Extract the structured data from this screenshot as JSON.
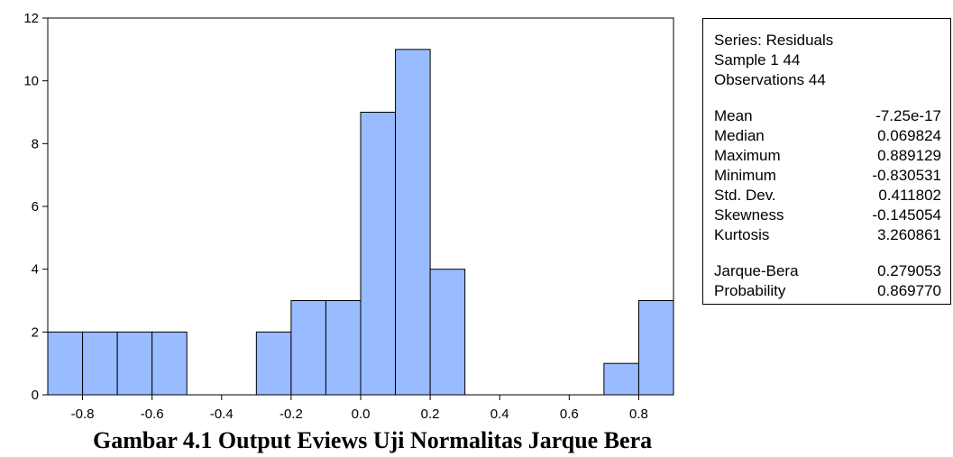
{
  "chart_data": {
    "type": "bar",
    "bins": [
      {
        "from": -0.9,
        "to": -0.8,
        "count": 2
      },
      {
        "from": -0.8,
        "to": -0.7,
        "count": 2
      },
      {
        "from": -0.7,
        "to": -0.6,
        "count": 2
      },
      {
        "from": -0.6,
        "to": -0.5,
        "count": 2
      },
      {
        "from": -0.5,
        "to": -0.4,
        "count": 0
      },
      {
        "from": -0.4,
        "to": -0.3,
        "count": 0
      },
      {
        "from": -0.3,
        "to": -0.2,
        "count": 2
      },
      {
        "from": -0.2,
        "to": -0.1,
        "count": 3
      },
      {
        "from": -0.1,
        "to": 0.0,
        "count": 3
      },
      {
        "from": 0.0,
        "to": 0.1,
        "count": 9
      },
      {
        "from": 0.1,
        "to": 0.2,
        "count": 11
      },
      {
        "from": 0.2,
        "to": 0.3,
        "count": 4
      },
      {
        "from": 0.3,
        "to": 0.4,
        "count": 0
      },
      {
        "from": 0.4,
        "to": 0.5,
        "count": 0
      },
      {
        "from": 0.5,
        "to": 0.6,
        "count": 0
      },
      {
        "from": 0.6,
        "to": 0.7,
        "count": 0
      },
      {
        "from": 0.7,
        "to": 0.8,
        "count": 1
      },
      {
        "from": 0.8,
        "to": 0.9,
        "count": 3
      }
    ],
    "xlim": [
      -0.9,
      0.9
    ],
    "ylim": [
      0,
      12
    ],
    "xticks": [
      -0.8,
      -0.6,
      -0.4,
      -0.2,
      0.0,
      0.2,
      0.4,
      0.6,
      0.8
    ],
    "xtick_labels": [
      "-0.8",
      "-0.6",
      "-0.4",
      "-0.2",
      "0.0",
      "0.2",
      "0.4",
      "0.6",
      "0.8"
    ],
    "yticks": [
      0,
      2,
      4,
      6,
      8,
      10,
      12
    ],
    "ytick_labels": [
      "0",
      "2",
      "4",
      "6",
      "8",
      "10",
      "12"
    ],
    "bar_color": "#99bbff",
    "grid": false
  },
  "stats_box": {
    "series": "Series: Residuals",
    "sample": "Sample 1 44",
    "observations": "Observations 44",
    "rows": [
      {
        "label": "Mean",
        "value": "-7.25e-17"
      },
      {
        "label": "Median",
        "value": "0.069824"
      },
      {
        "label": "Maximum",
        "value": "0.889129"
      },
      {
        "label": "Minimum",
        "value": "-0.830531"
      },
      {
        "label": "Std. Dev.",
        "value": "0.411802"
      },
      {
        "label": "Skewness",
        "value": "-0.145054"
      },
      {
        "label": "Kurtosis",
        "value": "3.260861"
      }
    ],
    "tests": [
      {
        "label": "Jarque-Bera",
        "value": "0.279053"
      },
      {
        "label": "Probability",
        "value": "0.869770"
      }
    ]
  },
  "caption": "Gambar 4.1 Output Eviews Uji Normalitas Jarque Bera"
}
